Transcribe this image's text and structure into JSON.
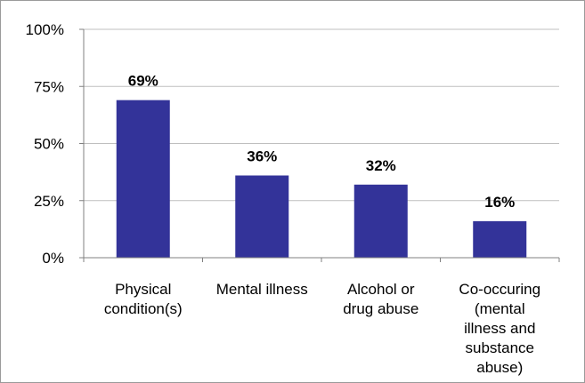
{
  "chart_data": {
    "type": "bar",
    "categories": [
      [
        "Physical",
        "condition(s)"
      ],
      [
        "Mental illness"
      ],
      [
        "Alcohol or",
        "drug abuse"
      ],
      [
        "Co-occuring",
        "(mental",
        "illness and",
        "substance",
        "abuse)"
      ]
    ],
    "values": [
      69,
      36,
      32,
      16
    ],
    "data_labels": [
      "69%",
      "36%",
      "32%",
      "16%"
    ],
    "y_ticks": [
      0,
      25,
      50,
      75,
      100
    ],
    "y_tick_labels": [
      "0%",
      "25%",
      "50%",
      "75%",
      "100%"
    ],
    "ylim": [
      0,
      100
    ],
    "grid": true,
    "legend": "none",
    "colors": {
      "bar": "#333399",
      "grid": "#bfbfbf",
      "axis": "#808080"
    }
  }
}
